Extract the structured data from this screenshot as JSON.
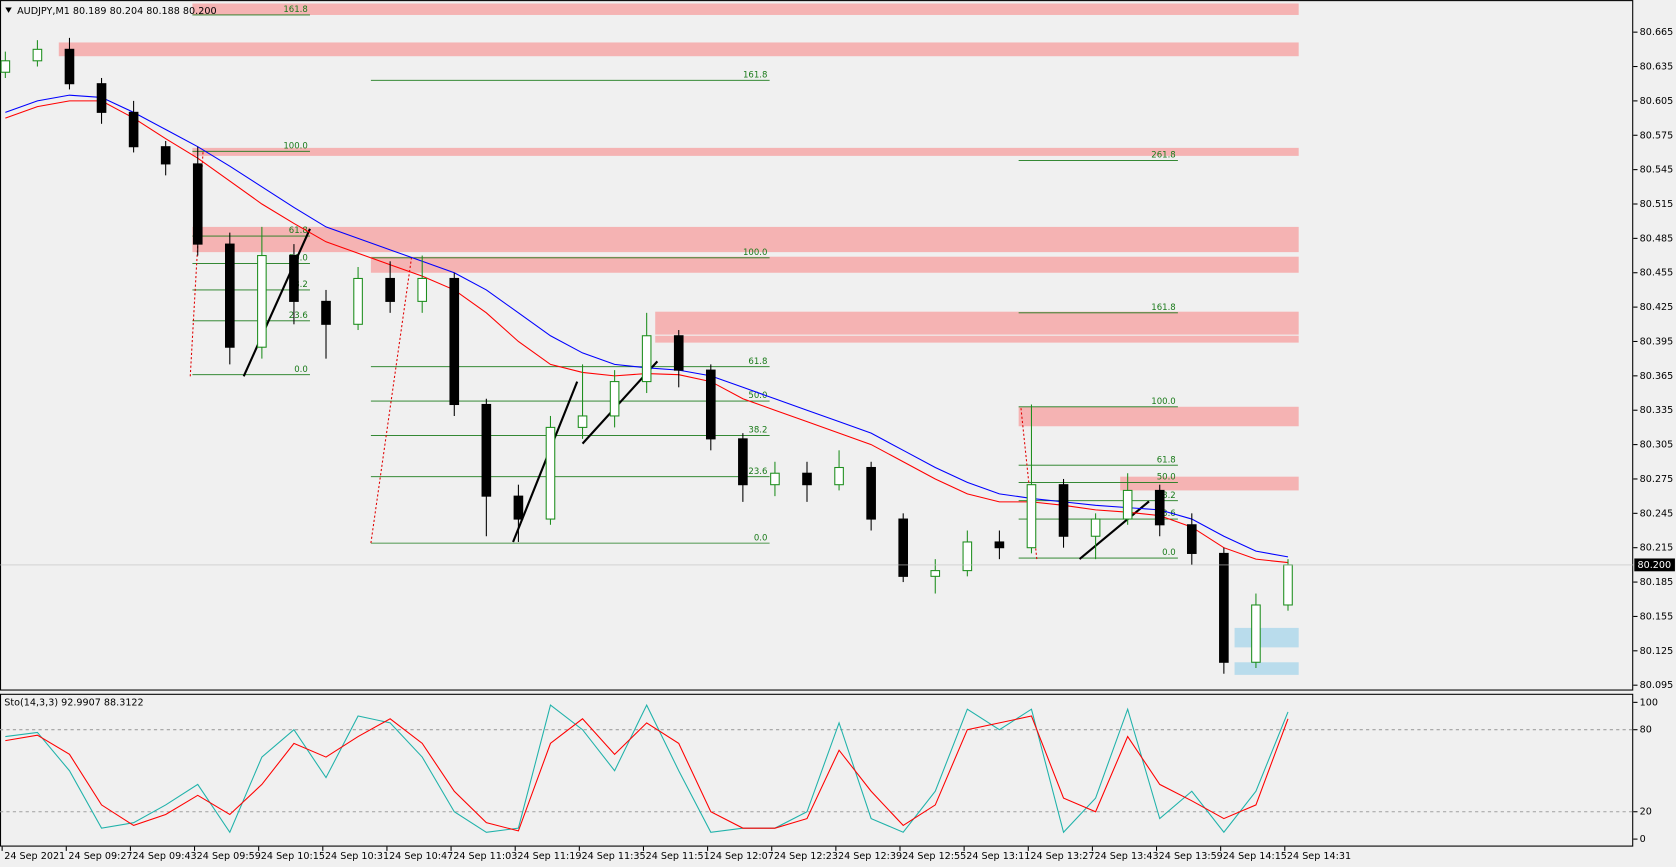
{
  "header": "AUDJPY,M1  80.189 80.204 80.188 80.200",
  "chart_data": [
    {
      "type": "candlestick",
      "x": [
        "24 Sep 09:11",
        "24 Sep 09:19",
        "24 Sep 09:27",
        "24 Sep 09:35",
        "24 Sep 09:43",
        "24 Sep 09:51",
        "24 Sep 09:59",
        "24 Sep 10:07",
        "24 Sep 10:15",
        "24 Sep 10:23",
        "24 Sep 10:31",
        "24 Sep 10:39",
        "24 Sep 10:47",
        "24 Sep 10:55",
        "24 Sep 11:03",
        "24 Sep 11:11",
        "24 Sep 11:19",
        "24 Sep 11:27",
        "24 Sep 11:35",
        "24 Sep 11:43",
        "24 Sep 11:51",
        "24 Sep 11:59",
        "24 Sep 12:07",
        "24 Sep 12:15",
        "24 Sep 12:23",
        "24 Sep 12:31",
        "24 Sep 12:39",
        "24 Sep 12:47",
        "24 Sep 12:55",
        "24 Sep 13:03",
        "24 Sep 13:11",
        "24 Sep 13:19",
        "24 Sep 13:27",
        "24 Sep 13:35",
        "24 Sep 13:43",
        "24 Sep 13:51",
        "24 Sep 13:59",
        "24 Sep 14:07",
        "24 Sep 14:15",
        "24 Sep 14:23",
        "24 Sep 14:31"
      ],
      "open": [
        80.63,
        80.64,
        80.65,
        80.62,
        80.595,
        80.565,
        80.55,
        80.48,
        80.39,
        80.47,
        80.43,
        80.41,
        80.45,
        80.43,
        80.45,
        80.34,
        80.26,
        80.24,
        80.32,
        80.33,
        80.36,
        80.4,
        80.37,
        80.31,
        80.27,
        80.28,
        80.27,
        80.285,
        80.24,
        80.19,
        80.195,
        80.22,
        80.215,
        80.27,
        80.225,
        80.24,
        80.265,
        80.235,
        80.21,
        80.115,
        80.165
      ],
      "high": [
        80.648,
        80.658,
        80.66,
        80.625,
        80.605,
        80.57,
        80.565,
        80.49,
        80.495,
        80.48,
        80.44,
        80.46,
        80.465,
        80.47,
        80.455,
        80.345,
        80.27,
        80.33,
        80.375,
        80.37,
        80.42,
        80.405,
        80.375,
        80.315,
        80.29,
        80.29,
        80.3,
        80.29,
        80.245,
        80.205,
        80.23,
        80.23,
        80.34,
        80.275,
        80.245,
        80.28,
        80.27,
        80.245,
        80.215,
        80.175,
        80.205
      ],
      "low": [
        80.625,
        80.635,
        80.615,
        80.585,
        80.56,
        80.54,
        80.47,
        80.375,
        80.38,
        80.41,
        80.38,
        80.405,
        80.42,
        80.42,
        80.33,
        80.225,
        80.22,
        80.235,
        80.31,
        80.32,
        80.35,
        80.355,
        80.3,
        80.255,
        80.26,
        80.255,
        80.265,
        80.23,
        80.185,
        80.175,
        80.19,
        80.205,
        80.21,
        80.215,
        80.205,
        80.235,
        80.225,
        80.2,
        80.105,
        80.11,
        80.16
      ],
      "close": [
        80.64,
        80.65,
        80.62,
        80.595,
        80.565,
        80.55,
        80.48,
        80.39,
        80.47,
        80.43,
        80.41,
        80.45,
        80.43,
        80.45,
        80.34,
        80.26,
        80.24,
        80.32,
        80.33,
        80.36,
        80.4,
        80.37,
        80.31,
        80.27,
        80.28,
        80.27,
        80.285,
        80.24,
        80.19,
        80.195,
        80.22,
        80.215,
        80.27,
        80.225,
        80.24,
        80.265,
        80.235,
        80.21,
        80.115,
        80.165,
        80.2
      ],
      "up_color": "#1f8f1f",
      "down_color": "#000000",
      "series": [
        {
          "color": "#0000ff",
          "values": [
            80.595,
            80.605,
            80.61,
            80.608,
            80.595,
            80.58,
            80.565,
            80.548,
            80.53,
            80.512,
            80.495,
            80.485,
            80.475,
            80.465,
            80.455,
            80.44,
            80.42,
            80.4,
            80.385,
            80.375,
            80.372,
            80.37,
            80.365,
            80.355,
            80.345,
            80.335,
            80.325,
            80.315,
            80.3,
            80.285,
            80.272,
            80.262,
            80.258,
            80.255,
            80.252,
            80.25,
            80.248,
            80.24,
            80.225,
            80.212,
            80.207
          ]
        },
        {
          "color": "#ff0000",
          "values": [
            80.59,
            80.6,
            80.605,
            80.605,
            80.59,
            80.572,
            80.555,
            80.535,
            80.515,
            80.498,
            80.482,
            80.472,
            80.462,
            80.452,
            80.44,
            80.42,
            80.395,
            80.375,
            80.368,
            80.365,
            80.367,
            80.366,
            80.36,
            80.345,
            80.335,
            80.325,
            80.315,
            80.305,
            80.29,
            80.275,
            80.262,
            80.255,
            80.255,
            80.252,
            80.248,
            80.246,
            80.243,
            80.233,
            80.215,
            80.205,
            80.202
          ]
        }
      ],
      "ylim": [
        80.0903,
        80.693
      ],
      "yticks": [
        80.665,
        80.635,
        80.605,
        80.575,
        80.545,
        80.515,
        80.485,
        80.455,
        80.425,
        80.395,
        80.365,
        80.335,
        80.305,
        80.275,
        80.245,
        80.215,
        80.185,
        80.155,
        80.125,
        80.095
      ],
      "current_price": {
        "value": 80.2,
        "label": "80.200"
      },
      "xtick_labels": [
        "24 Sep 2021",
        "24 Sep 09:27",
        "24 Sep 09:43",
        "24 Sep 09:59",
        "24 Sep 10:15",
        "24 Sep 10:31",
        "24 Sep 10:47",
        "24 Sep 11:03",
        "24 Sep 11:19",
        "24 Sep 11:35",
        "24 Sep 11:51",
        "24 Sep 12:07",
        "24 Sep 12:23",
        "24 Sep 12:39",
        "24 Sep 12:55",
        "24 Sep 13:11",
        "24 Sep 13:27",
        "24 Sep 13:43",
        "24 Sep 13:59",
        "24 Sep 14:15",
        "24 Sep 14:31"
      ],
      "fib_color": "#1a7a1a",
      "fib_levels": [
        [
          {
            "value": 80.68,
            "label": "161.8"
          },
          {
            "value": 80.561,
            "label": "100.0"
          },
          {
            "value": 80.487,
            "label": "61.8"
          },
          {
            "value": 80.463,
            "label": "50.0"
          },
          {
            "value": 80.44,
            "label": "38.2"
          },
          {
            "value": 80.413,
            "label": "23.6"
          },
          {
            "value": 80.366,
            "label": "0.0"
          }
        ],
        [
          {
            "value": 80.623,
            "label": "161.8"
          },
          {
            "value": 80.468,
            "label": "100.0"
          },
          {
            "value": 80.373,
            "label": "61.8"
          },
          {
            "value": 80.343,
            "label": "50.0"
          },
          {
            "value": 80.313,
            "label": "38.2"
          },
          {
            "value": 80.277,
            "label": "23.6"
          },
          {
            "value": 80.219,
            "label": "0.0"
          }
        ],
        [
          {
            "value": 80.553,
            "label": "261.8"
          },
          {
            "value": 80.42,
            "label": "161.8"
          },
          {
            "value": 80.338,
            "label": "100.0"
          },
          {
            "value": 80.287,
            "label": "61.8"
          },
          {
            "value": 80.272,
            "label": "50.0"
          },
          {
            "value": 80.256,
            "label": "38.2"
          },
          {
            "value": 80.24,
            "label": "23.6"
          },
          {
            "value": 80.206,
            "label": "0.0"
          }
        ]
      ],
      "zones": [
        {
          "color": "#f5b3b3",
          "range": [
            80.68,
            80.69
          ]
        },
        {
          "color": "#f5b3b3",
          "range": [
            80.644,
            80.656
          ]
        },
        {
          "color": "#f5b3b3",
          "range": [
            80.557,
            80.564
          ]
        },
        {
          "color": "#f5b3b3",
          "range": [
            80.473,
            80.495
          ]
        },
        {
          "color": "#f5b3b3",
          "range": [
            80.455,
            80.469
          ]
        },
        {
          "color": "#f5b3b3",
          "range": [
            80.401,
            80.421
          ]
        },
        {
          "color": "#f5b3b3",
          "range": [
            80.394,
            80.4
          ]
        },
        {
          "color": "#f5b3b3",
          "range": [
            80.321,
            80.338
          ]
        },
        {
          "color": "#f5b3b3",
          "range": [
            80.265,
            80.277
          ]
        },
        {
          "color": "#b9dcec",
          "range": [
            80.128,
            80.145
          ]
        },
        {
          "color": "#b9dcec",
          "range": [
            80.104,
            80.115
          ]
        }
      ]
    },
    {
      "type": "line",
      "title": "Sto(14,3,3) 92.9907 88.3122",
      "series": [
        {
          "color": "#20b2aa",
          "values": [
            75,
            78,
            50,
            8,
            12,
            25,
            40,
            5,
            60,
            80,
            45,
            90,
            85,
            60,
            20,
            5,
            8,
            98,
            80,
            50,
            98,
            50,
            5,
            8,
            8,
            20,
            85,
            15,
            5,
            35,
            95,
            80,
            95,
            5,
            30,
            95,
            15,
            35,
            5,
            35,
            93
          ]
        },
        {
          "color": "#ff0000",
          "values": [
            72,
            76,
            62,
            25,
            10,
            18,
            32,
            18,
            40,
            70,
            60,
            75,
            88,
            70,
            35,
            12,
            6,
            70,
            88,
            62,
            85,
            70,
            20,
            8,
            8,
            15,
            65,
            35,
            10,
            25,
            80,
            85,
            90,
            30,
            20,
            75,
            40,
            28,
            15,
            25,
            88
          ]
        }
      ],
      "ylim": [
        -5.5,
        105.5
      ],
      "yticks": [
        100,
        80,
        20,
        0
      ],
      "dashed_levels": [
        80,
        20
      ]
    }
  ]
}
